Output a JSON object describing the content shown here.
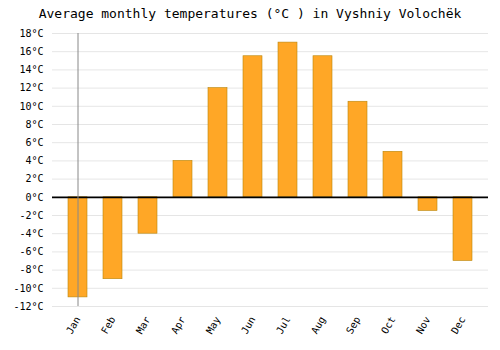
{
  "chart_data": {
    "type": "bar",
    "title": "Average monthly temperatures (°C ) in Vyshniy Volochëk",
    "categories": [
      "Jan",
      "Feb",
      "Mar",
      "Apr",
      "May",
      "Jun",
      "Jul",
      "Aug",
      "Sep",
      "Oct",
      "Nov",
      "Dec"
    ],
    "values": [
      -11,
      -9,
      -4,
      4,
      12,
      15.5,
      17,
      15.5,
      10.5,
      5,
      -1.5,
      -7
    ],
    "color": "#FFA726",
    "ylim": [
      -12,
      18
    ],
    "yticks": [
      {
        "value": -12,
        "label": "-12°C"
      },
      {
        "value": -10,
        "label": "-10°C"
      },
      {
        "value": -8,
        "label": "-8°C"
      },
      {
        "value": -6,
        "label": "-6°C"
      },
      {
        "value": -4,
        "label": "-4°C"
      },
      {
        "value": -2,
        "label": "-2°C"
      },
      {
        "value": 0,
        "label": "0°C"
      },
      {
        "value": 2,
        "label": "2°C"
      },
      {
        "value": 4,
        "label": "4°C"
      },
      {
        "value": 6,
        "label": "6°C"
      },
      {
        "value": 8,
        "label": "8°C"
      },
      {
        "value": 10,
        "label": "10°C"
      },
      {
        "value": 12,
        "label": "12°C"
      },
      {
        "value": 14,
        "label": "14°C"
      },
      {
        "value": 16,
        "label": "16°C"
      },
      {
        "value": 18,
        "label": "18°C"
      }
    ],
    "grid": true
  }
}
